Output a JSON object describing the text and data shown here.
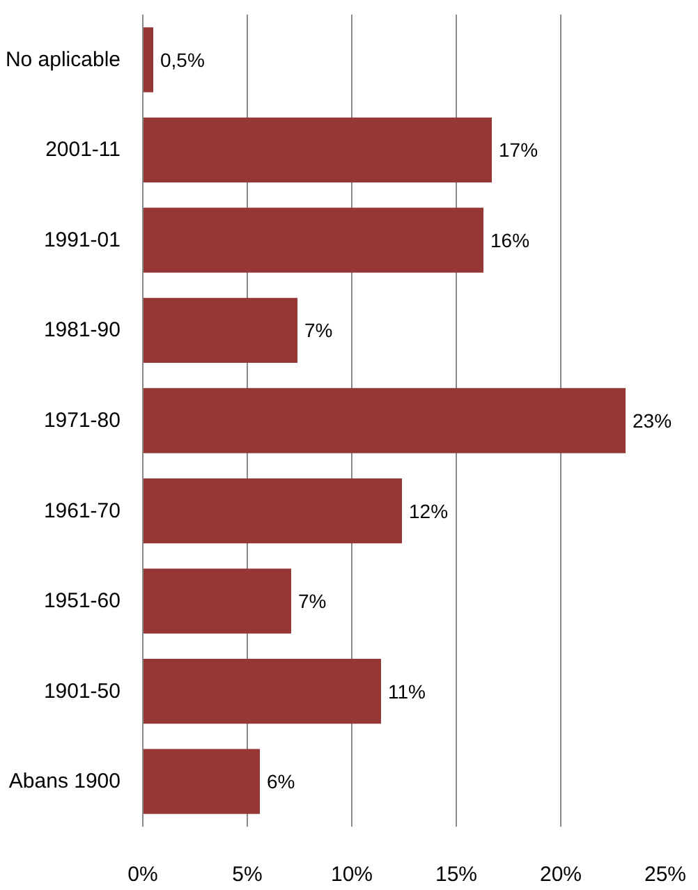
{
  "chart_data": {
    "type": "bar",
    "orientation": "horizontal",
    "categories": [
      "No aplicable",
      "2001-11",
      "1991-01",
      "1981-90",
      "1971-80",
      "1961-70",
      "1951-60",
      "1901-50",
      "Abans 1900"
    ],
    "values": [
      0.5,
      16.7,
      16.3,
      7.4,
      23.1,
      12.4,
      7.1,
      11.4,
      5.6
    ],
    "value_labels": [
      "0,5%",
      "17%",
      "16%",
      "7%",
      "23%",
      "12%",
      "7%",
      "11%",
      "6%"
    ],
    "color": "#953735",
    "xlim": [
      0,
      25
    ],
    "xticks": [
      {
        "value": 0,
        "label": "0%"
      },
      {
        "value": 5,
        "label": "5%"
      },
      {
        "value": 10,
        "label": "10%"
      },
      {
        "value": 15,
        "label": "15%"
      },
      {
        "value": 20,
        "label": "20%"
      },
      {
        "value": 25,
        "label": "25%"
      }
    ],
    "grid": "x"
  }
}
